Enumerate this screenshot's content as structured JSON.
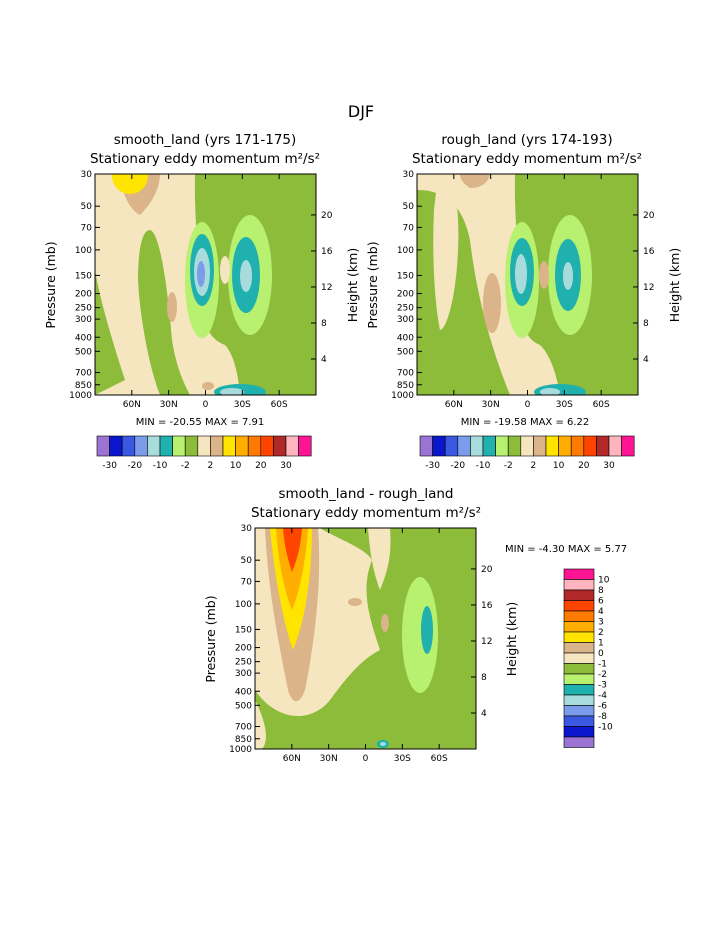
{
  "figure": {
    "title": "DJF"
  },
  "colors": {
    "c_n30": "#9b74d3",
    "c_n20": "#0a16cc",
    "c_n10": "#3a58e2",
    "c_n6": "#7a9cea",
    "c_n4": "#a8dcdc",
    "c_n3": "#20b0ae",
    "c_n2": "#b8f070",
    "c_n1": "#8dbb3a",
    "c_0": "#f5e6c0",
    "c_1": "#dbb48a",
    "c_2": "#ffe400",
    "c_3": "#ffae00",
    "c_4": "#ff7a00",
    "c_6": "#ff4400",
    "c_8": "#b02828",
    "c_10": "#ffb4c0",
    "c_top": "#ff1493"
  },
  "chart_data": [
    {
      "type": "heatmap",
      "id": "panel-smooth",
      "title": "smooth_land (yrs 171-175)",
      "subtitle": "Stationary eddy momentum  m²/s²",
      "ylabel": "Pressure (mb)",
      "ylabel_right": "Height (km)",
      "x_ticks": [
        "60N",
        "30N",
        "0",
        "30S",
        "60S"
      ],
      "y_ticks": [
        "30",
        "50",
        "70",
        "100",
        "150",
        "200",
        "250",
        "300",
        "400",
        "500",
        "700",
        "850",
        "1000"
      ],
      "height_ticks": [
        "20",
        "16",
        "12",
        "8",
        "4"
      ],
      "min_max": "MIN = -20.55   MAX =   7.91",
      "colorbar_labels": [
        "-30",
        "-20",
        "-10",
        "-2",
        "2",
        "10",
        "20",
        "30"
      ]
    },
    {
      "type": "heatmap",
      "id": "panel-rough",
      "title": "rough_land (yrs 174-193)",
      "subtitle": "Stationary eddy momentum  m²/s²",
      "ylabel": "Pressure (mb)",
      "ylabel_right": "Height (km)",
      "x_ticks": [
        "60N",
        "30N",
        "0",
        "30S",
        "60S"
      ],
      "y_ticks": [
        "30",
        "50",
        "70",
        "100",
        "150",
        "200",
        "250",
        "300",
        "400",
        "500",
        "700",
        "850",
        "1000"
      ],
      "height_ticks": [
        "20",
        "16",
        "12",
        "8",
        "4"
      ],
      "min_max": "MIN = -19.58   MAX =   6.22",
      "colorbar_labels": [
        "-30",
        "-20",
        "-10",
        "-2",
        "2",
        "10",
        "20",
        "30"
      ]
    },
    {
      "type": "heatmap",
      "id": "panel-diff",
      "title": "smooth_land - rough_land",
      "subtitle": "Stationary eddy momentum  m²/s²",
      "ylabel": "Pressure (mb)",
      "ylabel_right": "Height (km)",
      "x_ticks": [
        "60N",
        "30N",
        "0",
        "30S",
        "60S"
      ],
      "y_ticks": [
        "30",
        "50",
        "70",
        "100",
        "150",
        "200",
        "250",
        "300",
        "400",
        "500",
        "700",
        "850",
        "1000"
      ],
      "height_ticks": [
        "20",
        "16",
        "12",
        "8",
        "4"
      ],
      "min_max": "MIN =  -4.30   MAX =   5.77",
      "colorbar_labels": [
        "10",
        "8",
        "6",
        "4",
        "3",
        "2",
        "1",
        "0",
        "-1",
        "-2",
        "-3",
        "-4",
        "-6",
        "-8",
        "-10"
      ]
    }
  ]
}
